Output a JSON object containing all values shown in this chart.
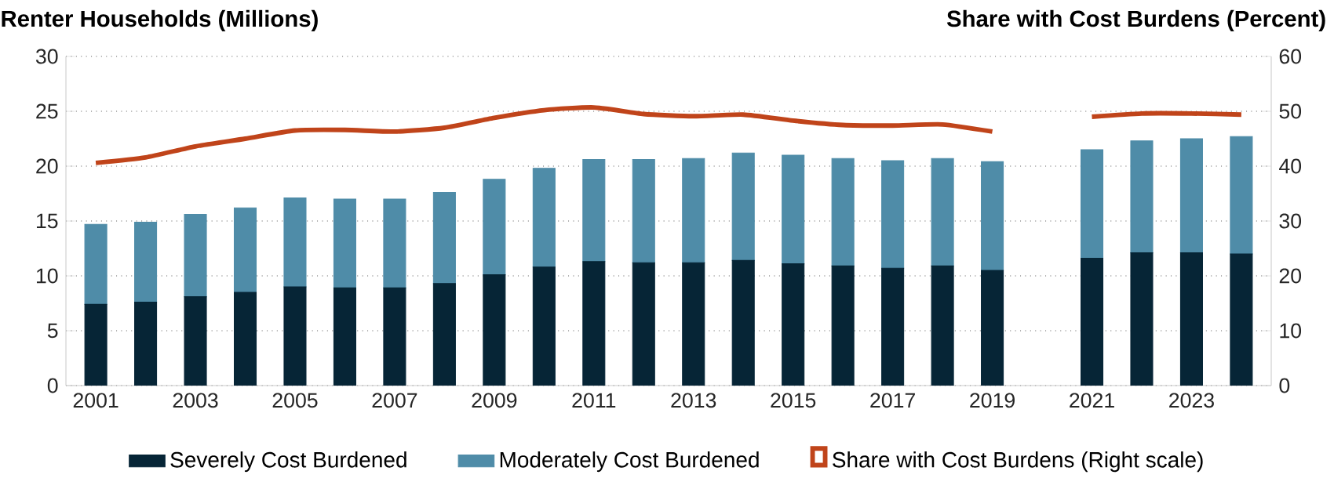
{
  "chart_data": {
    "type": "bar",
    "stacked": true,
    "ylabel": "Renter Households (Millions)",
    "y2label": "Share with Cost Burdens (Percent)",
    "categories": [
      "2001",
      null,
      "2003",
      null,
      "2005",
      null,
      "2007",
      null,
      "2009",
      null,
      "2011",
      null,
      "2013",
      null,
      "2015",
      null,
      "2017",
      null,
      "2019",
      null,
      "2021",
      null,
      "2023",
      null
    ],
    "series": [
      {
        "name": "Severely Cost Burdened",
        "color": "#062536",
        "values": [
          7.4,
          7.6,
          8.1,
          8.5,
          9.0,
          8.9,
          8.9,
          9.3,
          10.1,
          10.8,
          11.3,
          11.2,
          11.2,
          11.4,
          11.1,
          10.9,
          10.7,
          10.9,
          10.5,
          null,
          11.6,
          12.1,
          12.1,
          12.0
        ]
      },
      {
        "name": "Moderately Cost Burdened",
        "color": "#4f8ca8",
        "values": [
          7.3,
          7.3,
          7.5,
          7.7,
          8.1,
          8.1,
          8.1,
          8.3,
          8.7,
          9.0,
          9.3,
          9.4,
          9.5,
          9.8,
          9.9,
          9.8,
          9.8,
          9.8,
          9.9,
          null,
          9.9,
          10.2,
          10.4,
          10.7
        ]
      },
      {
        "name": "Share with Cost Burdens (Right scale)",
        "type": "line",
        "axis": "y2",
        "color": "#c0441a",
        "values": [
          40.6,
          41.6,
          43.6,
          45.0,
          46.5,
          46.6,
          46.3,
          47.0,
          48.8,
          50.2,
          50.7,
          49.5,
          49.1,
          49.4,
          48.3,
          47.5,
          47.4,
          47.6,
          46.3,
          null,
          49.0,
          49.6,
          49.6,
          49.4
        ]
      }
    ],
    "ylim": [
      0,
      30
    ],
    "yticks": [
      0,
      5,
      10,
      15,
      20,
      25,
      30
    ],
    "y2lim": [
      0,
      60
    ],
    "y2ticks": [
      0,
      10,
      20,
      30,
      40,
      50,
      60
    ],
    "grid": "y",
    "legend": "bottom"
  }
}
